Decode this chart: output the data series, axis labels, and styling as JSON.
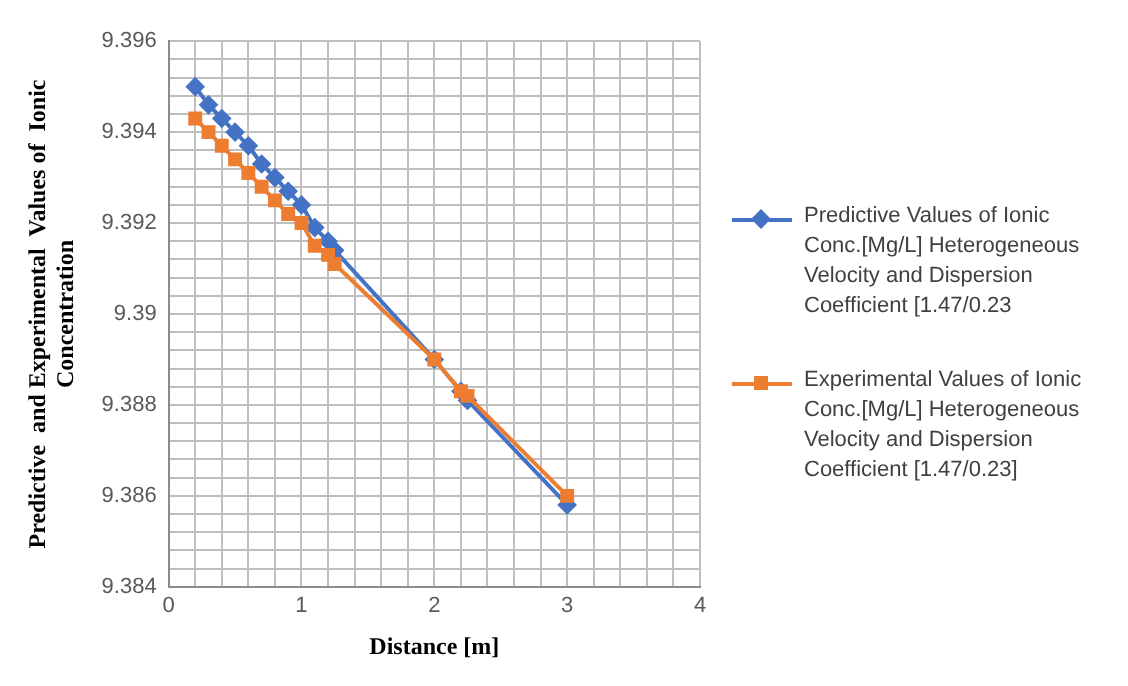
{
  "chart_data": {
    "type": "line",
    "xlabel": "Distance [m]",
    "ylabel": "Predictive  and Experimental  Values of  Ionic Concentration",
    "x": [
      0.2,
      0.3,
      0.4,
      0.5,
      0.6,
      0.7,
      0.8,
      0.9,
      1.0,
      1.1,
      1.2,
      1.25,
      2,
      2.2,
      2.25,
      3
    ],
    "series": [
      {
        "name": "Predictive Values of  Ionic Conc.[Mg/L] Heterogeneous Velocity and  Dispersion Coefficient [1.47/0.23",
        "color": "#4472c4",
        "marker": "diamond",
        "values": [
          9.395,
          9.3946,
          9.3943,
          9.394,
          9.3937,
          9.3933,
          9.393,
          9.3927,
          9.3924,
          9.3919,
          9.3916,
          9.3914,
          9.389,
          9.3883,
          9.3881,
          9.3858
        ]
      },
      {
        "name": "Experimental  Values of Ionic Conc.[Mg/L] Heterogeneous Velocity and Dispersion Coefficient [1.47/0.23]",
        "color": "#ed7d31",
        "marker": "square",
        "values": [
          9.3943,
          9.394,
          9.3937,
          9.3934,
          9.3931,
          9.3928,
          9.3925,
          9.3922,
          9.392,
          9.3915,
          9.3913,
          9.3911,
          9.389,
          9.3883,
          9.3882,
          9.386
        ]
      }
    ],
    "xlim": [
      0,
      4
    ],
    "xticks": [
      0,
      {
        "value": 0.2,
        "label": null
      },
      {
        "value": 0.4,
        "label": null
      },
      {
        "value": 0.6,
        "label": null
      },
      {
        "value": 0.8,
        "label": null
      },
      1,
      {
        "value": 1.2,
        "label": null
      },
      {
        "value": 1.4,
        "label": null
      },
      {
        "value": 1.6,
        "label": null
      },
      {
        "value": 1.8,
        "label": null
      },
      2,
      {
        "value": 2.2,
        "label": null
      },
      {
        "value": 2.4,
        "label": null
      },
      {
        "value": 2.6,
        "label": null
      },
      {
        "value": 2.8,
        "label": null
      },
      3,
      {
        "value": 3.2,
        "label": null
      },
      {
        "value": 3.4,
        "label": null
      },
      {
        "value": 3.6,
        "label": null
      },
      {
        "value": 3.8,
        "label": null
      },
      4
    ],
    "ylim": [
      9.384,
      9.396
    ],
    "yticks": [
      9.384,
      {
        "value": 9.3844,
        "label": null
      },
      {
        "value": 9.3848,
        "label": null
      },
      {
        "value": 9.3852,
        "label": null
      },
      {
        "value": 9.3856,
        "label": null
      },
      9.386,
      {
        "value": 9.3864,
        "label": null
      },
      {
        "value": 9.3868,
        "label": null
      },
      {
        "value": 9.3872,
        "label": null
      },
      {
        "value": 9.3876,
        "label": null
      },
      9.388,
      {
        "value": 9.3884,
        "label": null
      },
      {
        "value": 9.3888,
        "label": null
      },
      {
        "value": 9.3892,
        "label": null
      },
      {
        "value": 9.3896,
        "label": null
      },
      9.39,
      {
        "value": 9.3904,
        "label": null
      },
      {
        "value": 9.3908,
        "label": null
      },
      {
        "value": 9.3912,
        "label": null
      },
      {
        "value": 9.3916,
        "label": null
      },
      9.392,
      {
        "value": 9.3924,
        "label": null
      },
      {
        "value": 9.3928,
        "label": null
      },
      {
        "value": 9.3932,
        "label": null
      },
      {
        "value": 9.3936,
        "label": null
      },
      9.394,
      {
        "value": 9.3944,
        "label": null
      },
      {
        "value": 9.3948,
        "label": null
      },
      {
        "value": 9.3952,
        "label": null
      },
      {
        "value": 9.3956,
        "label": null
      },
      9.396
    ],
    "grid": true,
    "legend": "right",
    "line_style": "solid"
  }
}
